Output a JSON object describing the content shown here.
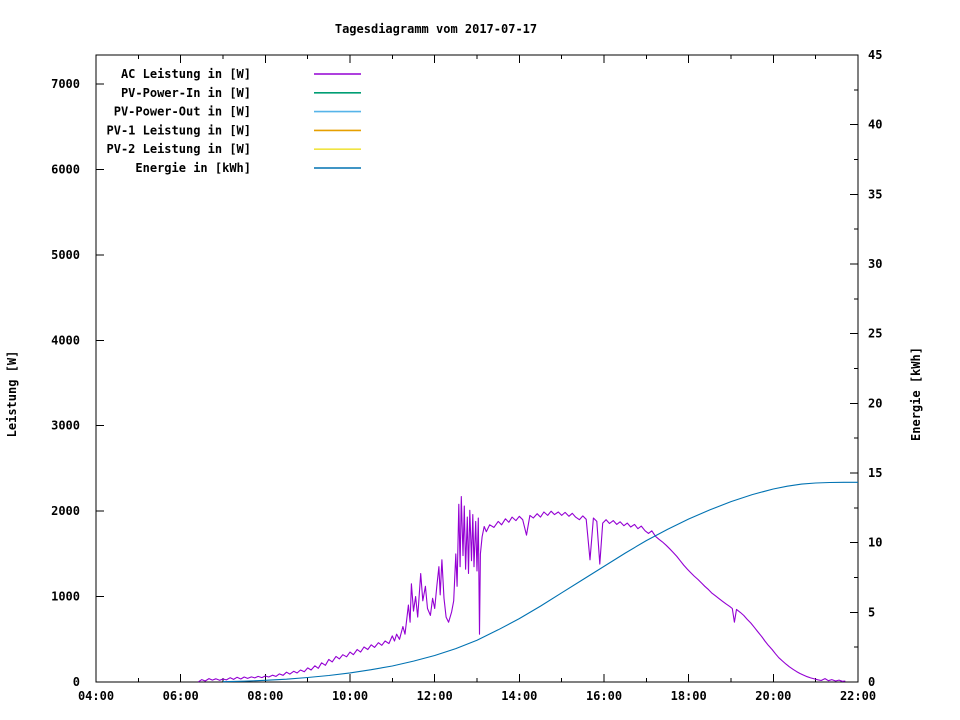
{
  "page": {
    "background": "#ffffff",
    "border_color": "#000000",
    "text_color": "#000000"
  },
  "chart_data": {
    "type": "line",
    "title": "Tagesdiagramm vom 2017-07-17",
    "ylabel": "Leistung [W]",
    "y2label": "Energie [kWh]",
    "grid": false,
    "legend_position": "top-left-inside",
    "x_axis": {
      "min": 4,
      "max": 22,
      "minor_step": 1,
      "tick_values": [
        4,
        6,
        8,
        10,
        12,
        14,
        16,
        18,
        20,
        22
      ],
      "tick_labels": [
        "04:00",
        "06:00",
        "08:00",
        "10:00",
        "12:00",
        "14:00",
        "16:00",
        "18:00",
        "20:00",
        "22:00"
      ]
    },
    "y_axis": {
      "min": 0,
      "max": 7340,
      "tick_values": [
        0,
        1000,
        2000,
        3000,
        4000,
        5000,
        6000,
        7000
      ],
      "tick_labels": [
        "0",
        "1000",
        "2000",
        "3000",
        "4000",
        "5000",
        "6000",
        "7000"
      ]
    },
    "y2_axis": {
      "min": 0,
      "max": 45,
      "minor_step": 2.5,
      "tick_values": [
        0,
        5,
        10,
        15,
        20,
        25,
        30,
        35,
        40,
        45
      ],
      "tick_labels": [
        "0",
        "5",
        "10",
        "15",
        "20",
        "25",
        "30",
        "35",
        "40",
        "45"
      ]
    },
    "series": [
      {
        "name": "AC Leistung in [W]",
        "color": "#9400d3",
        "axis": "y1",
        "points": [
          [
            6.42,
            2
          ],
          [
            6.5,
            28
          ],
          [
            6.58,
            12
          ],
          [
            6.67,
            40
          ],
          [
            6.75,
            22
          ],
          [
            6.83,
            38
          ],
          [
            6.92,
            20
          ],
          [
            7.0,
            35
          ],
          [
            7.08,
            25
          ],
          [
            7.17,
            50
          ],
          [
            7.25,
            30
          ],
          [
            7.33,
            55
          ],
          [
            7.42,
            35
          ],
          [
            7.5,
            58
          ],
          [
            7.58,
            42
          ],
          [
            7.67,
            60
          ],
          [
            7.75,
            48
          ],
          [
            7.83,
            66
          ],
          [
            7.92,
            52
          ],
          [
            8.0,
            70
          ],
          [
            8.08,
            58
          ],
          [
            8.17,
            80
          ],
          [
            8.25,
            65
          ],
          [
            8.33,
            95
          ],
          [
            8.42,
            78
          ],
          [
            8.5,
            115
          ],
          [
            8.58,
            92
          ],
          [
            8.67,
            125
          ],
          [
            8.75,
            105
          ],
          [
            8.83,
            140
          ],
          [
            8.92,
            120
          ],
          [
            9.0,
            165
          ],
          [
            9.08,
            140
          ],
          [
            9.17,
            190
          ],
          [
            9.25,
            160
          ],
          [
            9.33,
            225
          ],
          [
            9.42,
            195
          ],
          [
            9.5,
            265
          ],
          [
            9.58,
            235
          ],
          [
            9.67,
            300
          ],
          [
            9.75,
            270
          ],
          [
            9.83,
            320
          ],
          [
            9.92,
            295
          ],
          [
            10.0,
            350
          ],
          [
            10.08,
            320
          ],
          [
            10.17,
            380
          ],
          [
            10.25,
            350
          ],
          [
            10.33,
            410
          ],
          [
            10.42,
            380
          ],
          [
            10.5,
            435
          ],
          [
            10.58,
            405
          ],
          [
            10.67,
            460
          ],
          [
            10.75,
            430
          ],
          [
            10.83,
            480
          ],
          [
            10.92,
            450
          ],
          [
            11.0,
            540
          ],
          [
            11.05,
            480
          ],
          [
            11.1,
            560
          ],
          [
            11.17,
            500
          ],
          [
            11.25,
            650
          ],
          [
            11.3,
            560
          ],
          [
            11.38,
            900
          ],
          [
            11.42,
            700
          ],
          [
            11.45,
            1150
          ],
          [
            11.5,
            830
          ],
          [
            11.55,
            1000
          ],
          [
            11.6,
            760
          ],
          [
            11.67,
            1270
          ],
          [
            11.72,
            950
          ],
          [
            11.78,
            1120
          ],
          [
            11.83,
            860
          ],
          [
            11.9,
            780
          ],
          [
            11.95,
            980
          ],
          [
            12.0,
            860
          ],
          [
            12.05,
            1120
          ],
          [
            12.1,
            1350
          ],
          [
            12.13,
            1020
          ],
          [
            12.17,
            1430
          ],
          [
            12.22,
            980
          ],
          [
            12.27,
            760
          ],
          [
            12.33,
            700
          ],
          [
            12.4,
            820
          ],
          [
            12.45,
            950
          ],
          [
            12.5,
            1500
          ],
          [
            12.53,
            1120
          ],
          [
            12.57,
            2080
          ],
          [
            12.6,
            1350
          ],
          [
            12.63,
            2170
          ],
          [
            12.67,
            1480
          ],
          [
            12.7,
            2060
          ],
          [
            12.73,
            1320
          ],
          [
            12.77,
            1930
          ],
          [
            12.8,
            1270
          ],
          [
            12.83,
            2010
          ],
          [
            12.87,
            1420
          ],
          [
            12.9,
            1960
          ],
          [
            12.93,
            1350
          ],
          [
            12.97,
            1880
          ],
          [
            13.0,
            1300
          ],
          [
            13.03,
            1920
          ],
          [
            13.06,
            560
          ],
          [
            13.08,
            1500
          ],
          [
            13.12,
            1700
          ],
          [
            13.17,
            1820
          ],
          [
            13.22,
            1760
          ],
          [
            13.3,
            1840
          ],
          [
            13.4,
            1810
          ],
          [
            13.5,
            1880
          ],
          [
            13.58,
            1840
          ],
          [
            13.67,
            1910
          ],
          [
            13.75,
            1870
          ],
          [
            13.83,
            1930
          ],
          [
            13.92,
            1890
          ],
          [
            14.0,
            1940
          ],
          [
            14.08,
            1900
          ],
          [
            14.17,
            1720
          ],
          [
            14.25,
            1950
          ],
          [
            14.33,
            1920
          ],
          [
            14.42,
            1970
          ],
          [
            14.5,
            1930
          ],
          [
            14.58,
            1990
          ],
          [
            14.67,
            1950
          ],
          [
            14.75,
            2000
          ],
          [
            14.83,
            1960
          ],
          [
            14.92,
            1990
          ],
          [
            15.0,
            1950
          ],
          [
            15.08,
            1985
          ],
          [
            15.17,
            1940
          ],
          [
            15.25,
            1975
          ],
          [
            15.33,
            1930
          ],
          [
            15.42,
            1900
          ],
          [
            15.5,
            1945
          ],
          [
            15.58,
            1905
          ],
          [
            15.67,
            1430
          ],
          [
            15.75,
            1920
          ],
          [
            15.83,
            1880
          ],
          [
            15.9,
            1380
          ],
          [
            15.97,
            1860
          ],
          [
            16.05,
            1900
          ],
          [
            16.13,
            1855
          ],
          [
            16.22,
            1890
          ],
          [
            16.3,
            1845
          ],
          [
            16.38,
            1875
          ],
          [
            16.47,
            1830
          ],
          [
            16.55,
            1860
          ],
          [
            16.63,
            1815
          ],
          [
            16.72,
            1845
          ],
          [
            16.8,
            1795
          ],
          [
            16.88,
            1825
          ],
          [
            16.97,
            1770
          ],
          [
            17.05,
            1740
          ],
          [
            17.13,
            1770
          ],
          [
            17.22,
            1705
          ],
          [
            17.3,
            1670
          ],
          [
            17.38,
            1640
          ],
          [
            17.47,
            1600
          ],
          [
            17.55,
            1560
          ],
          [
            17.63,
            1520
          ],
          [
            17.72,
            1470
          ],
          [
            17.8,
            1420
          ],
          [
            17.88,
            1370
          ],
          [
            17.97,
            1320
          ],
          [
            18.05,
            1280
          ],
          [
            18.13,
            1240
          ],
          [
            18.22,
            1200
          ],
          [
            18.3,
            1160
          ],
          [
            18.38,
            1120
          ],
          [
            18.47,
            1080
          ],
          [
            18.55,
            1040
          ],
          [
            18.63,
            1010
          ],
          [
            18.72,
            975
          ],
          [
            18.8,
            945
          ],
          [
            18.88,
            915
          ],
          [
            18.97,
            885
          ],
          [
            19.03,
            860
          ],
          [
            19.08,
            700
          ],
          [
            19.13,
            850
          ],
          [
            19.22,
            815
          ],
          [
            19.3,
            780
          ],
          [
            19.38,
            735
          ],
          [
            19.47,
            690
          ],
          [
            19.55,
            640
          ],
          [
            19.63,
            590
          ],
          [
            19.72,
            535
          ],
          [
            19.8,
            480
          ],
          [
            19.88,
            430
          ],
          [
            19.97,
            380
          ],
          [
            20.05,
            330
          ],
          [
            20.13,
            285
          ],
          [
            20.22,
            245
          ],
          [
            20.3,
            210
          ],
          [
            20.38,
            178
          ],
          [
            20.47,
            148
          ],
          [
            20.55,
            122
          ],
          [
            20.63,
            100
          ],
          [
            20.72,
            80
          ],
          [
            20.8,
            62
          ],
          [
            20.88,
            48
          ],
          [
            20.97,
            36
          ],
          [
            21.05,
            26
          ],
          [
            21.13,
            18
          ],
          [
            21.22,
            40
          ],
          [
            21.3,
            15
          ],
          [
            21.38,
            28
          ],
          [
            21.47,
            12
          ],
          [
            21.55,
            22
          ],
          [
            21.63,
            8
          ],
          [
            21.7,
            12
          ]
        ]
      },
      {
        "name": "PV-Power-In in [W]",
        "color": "#009e73",
        "axis": "y1",
        "points": []
      },
      {
        "name": "PV-Power-Out in [W]",
        "color": "#56b4e9",
        "axis": "y1",
        "points": []
      },
      {
        "name": "PV-1 Leistung in [W]",
        "color": "#e69f00",
        "axis": "y1",
        "points": []
      },
      {
        "name": "PV-2 Leistung in [W]",
        "color": "#f0e442",
        "axis": "y1",
        "points": []
      },
      {
        "name": "Energie in [kWh]",
        "color": "#0072b2",
        "axis": "y2",
        "points": [
          [
            7.0,
            0.02
          ],
          [
            7.5,
            0.06
          ],
          [
            8.0,
            0.12
          ],
          [
            8.5,
            0.2
          ],
          [
            9.0,
            0.32
          ],
          [
            9.5,
            0.47
          ],
          [
            10.0,
            0.65
          ],
          [
            10.5,
            0.88
          ],
          [
            11.0,
            1.15
          ],
          [
            11.5,
            1.5
          ],
          [
            12.0,
            1.9
          ],
          [
            12.5,
            2.4
          ],
          [
            13.0,
            3.0
          ],
          [
            13.5,
            3.75
          ],
          [
            14.0,
            4.55
          ],
          [
            14.5,
            5.45
          ],
          [
            15.0,
            6.4
          ],
          [
            15.5,
            7.35
          ],
          [
            16.0,
            8.3
          ],
          [
            16.5,
            9.25
          ],
          [
            17.0,
            10.15
          ],
          [
            17.5,
            10.95
          ],
          [
            18.0,
            11.7
          ],
          [
            18.5,
            12.35
          ],
          [
            19.0,
            12.95
          ],
          [
            19.5,
            13.45
          ],
          [
            20.0,
            13.85
          ],
          [
            20.33,
            14.05
          ],
          [
            20.67,
            14.2
          ],
          [
            21.0,
            14.28
          ],
          [
            21.33,
            14.32
          ],
          [
            21.67,
            14.33
          ],
          [
            22.0,
            14.33
          ]
        ]
      }
    ]
  }
}
